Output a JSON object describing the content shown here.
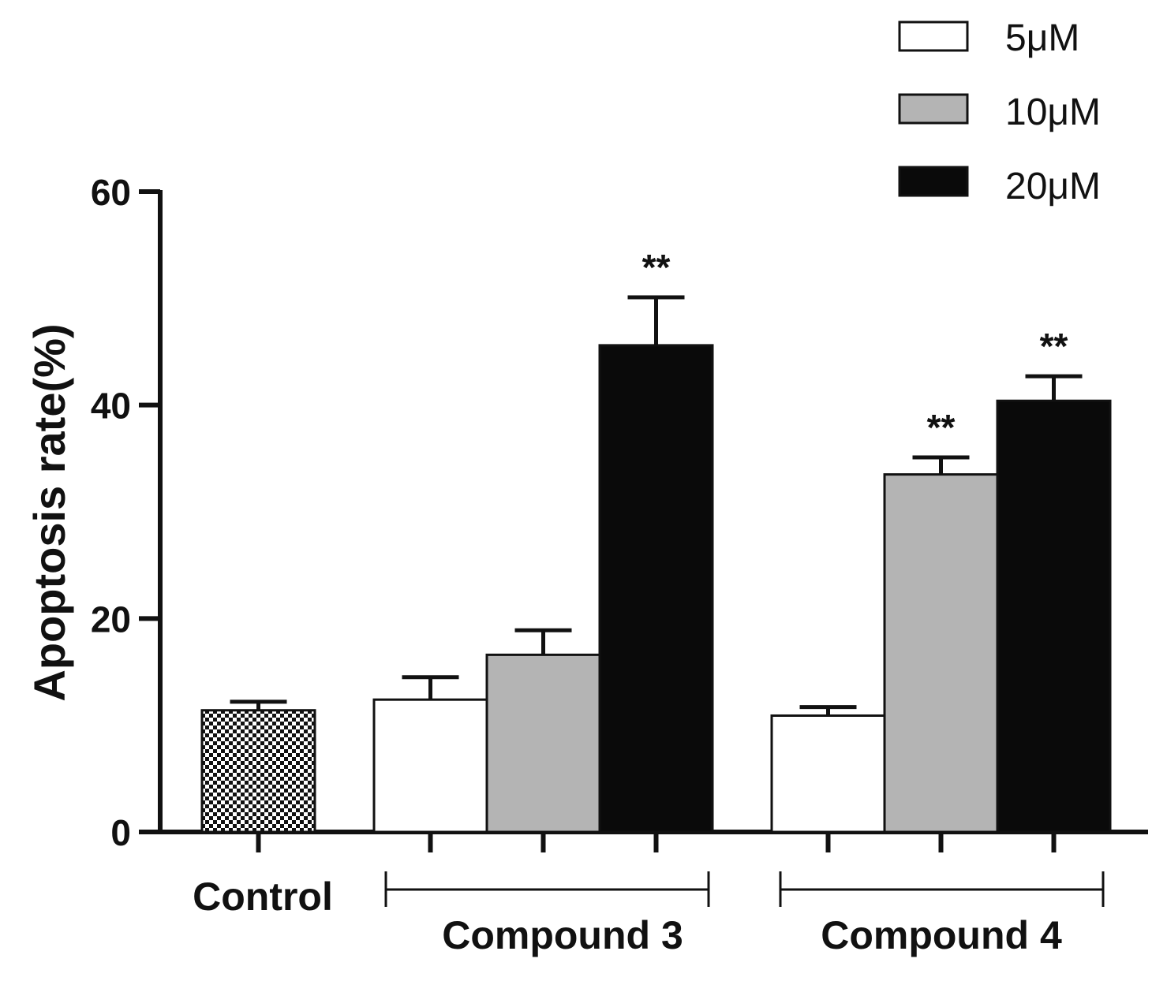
{
  "chart_data": {
    "type": "bar",
    "title": "",
    "xlabel": "",
    "ylabel": "Apoptosis rate(%)",
    "ylim": [
      0,
      60
    ],
    "yticks": [
      "0",
      "20",
      "40",
      "60"
    ],
    "grid": false,
    "legend_position": "top-right",
    "legend": [
      {
        "label": "5μM",
        "color": "#ffffff"
      },
      {
        "label": "10μM",
        "color": "#b4b4b4"
      },
      {
        "label": "20μM",
        "color": "#0a0a0a"
      }
    ],
    "groups": [
      {
        "label": "Control",
        "bars": [
          {
            "series": "Control",
            "value": 11.4,
            "error": 0.8,
            "fill": "checkered",
            "annotation": ""
          }
        ]
      },
      {
        "label": "Compound 3",
        "bars": [
          {
            "series": "5μM",
            "value": 12.4,
            "error": 2.1,
            "fill": "#ffffff",
            "annotation": ""
          },
          {
            "series": "10μM",
            "value": 16.6,
            "error": 2.3,
            "fill": "#b4b4b4",
            "annotation": ""
          },
          {
            "series": "20μM",
            "value": 45.6,
            "error": 4.5,
            "fill": "#0a0a0a",
            "annotation": "**"
          }
        ]
      },
      {
        "label": "Compound 4",
        "bars": [
          {
            "series": "5μM",
            "value": 10.9,
            "error": 0.8,
            "fill": "#ffffff",
            "annotation": ""
          },
          {
            "series": "10μM",
            "value": 33.5,
            "error": 1.6,
            "fill": "#b4b4b4",
            "annotation": "**"
          },
          {
            "series": "20μM",
            "value": 40.4,
            "error": 2.3,
            "fill": "#0a0a0a",
            "annotation": "**"
          }
        ]
      }
    ]
  }
}
